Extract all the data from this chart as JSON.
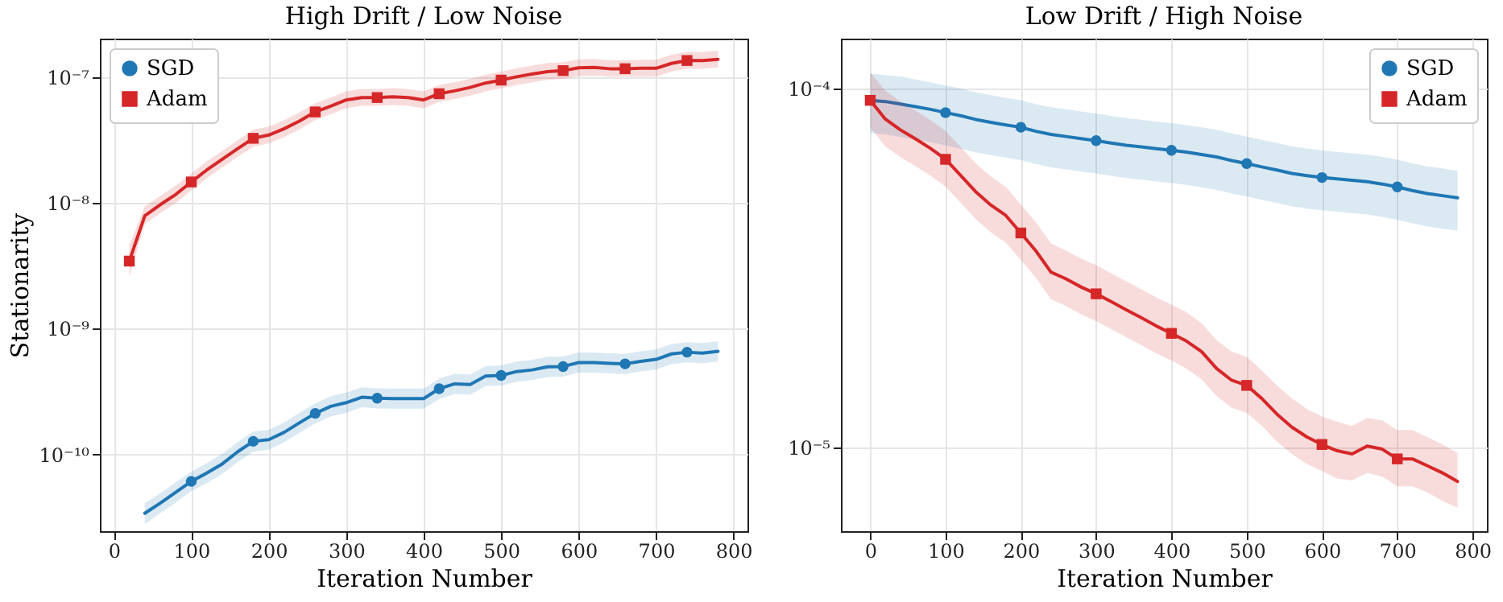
{
  "chart_data": [
    {
      "type": "line",
      "title": "High Drift / Low Noise",
      "xlabel": "Iteration Number",
      "ylabel": "Stationarity",
      "log": "y",
      "grid": true,
      "legend": "top left",
      "x": [
        20,
        40,
        60,
        80,
        100,
        120,
        140,
        160,
        180,
        200,
        220,
        240,
        260,
        280,
        300,
        320,
        340,
        360,
        380,
        400,
        420,
        440,
        460,
        480,
        500,
        520,
        540,
        560,
        580,
        600,
        620,
        640,
        660,
        680,
        700,
        720,
        740,
        760,
        780
      ],
      "xlim": [
        -18,
        818
      ],
      "xticks": [
        0,
        100,
        200,
        300,
        400,
        500,
        600,
        700,
        800
      ],
      "ylim": [
        2.45e-11,
        2.03e-07
      ],
      "yticks": [
        {
          "value": 1e-10,
          "label": "10⁻¹⁰"
        },
        {
          "value": 1e-09,
          "label": "10⁻⁹"
        },
        {
          "value": 1e-08,
          "label": "10⁻⁸"
        },
        {
          "value": 1e-07,
          "label": "10⁻⁷"
        }
      ],
      "series": [
        {
          "name": "SGD",
          "color": "#1f77b4",
          "values": [
            null,
            3.4e-11,
            4.1e-11,
            5e-11,
            6.1e-11,
            7.1e-11,
            8.4e-11,
            1.05e-10,
            1.27e-10,
            1.31e-10,
            1.5e-10,
            1.79e-10,
            2.12e-10,
            2.41e-10,
            2.58e-10,
            2.85e-10,
            2.8e-10,
            2.78e-10,
            2.78e-10,
            2.78e-10,
            3.33e-10,
            3.64e-10,
            3.6e-10,
            4.2e-10,
            4.25e-10,
            4.56e-10,
            4.7e-10,
            4.98e-10,
            5e-10,
            5.38e-10,
            5.38e-10,
            5.3e-10,
            5.25e-10,
            5.5e-10,
            5.7e-10,
            6.3e-10,
            6.5e-10,
            6.4e-10,
            6.6e-10
          ],
          "upper": [
            null,
            4.1e-11,
            4.9e-11,
            6e-11,
            7.3e-11,
            8.5e-11,
            1.01e-10,
            1.26e-10,
            1.52e-10,
            1.57e-10,
            1.8e-10,
            2.15e-10,
            2.54e-10,
            2.89e-10,
            3.1e-10,
            3.42e-10,
            3.36e-10,
            3.34e-10,
            3.34e-10,
            3.34e-10,
            4e-10,
            4.37e-10,
            4.32e-10,
            5.04e-10,
            5.1e-10,
            5.47e-10,
            5.64e-10,
            5.98e-10,
            6e-10,
            6.46e-10,
            6.46e-10,
            6.36e-10,
            6.3e-10,
            6.6e-10,
            6.84e-10,
            7.56e-10,
            7.8e-10,
            7.68e-10,
            7.92e-10
          ],
          "lower": [
            null,
            2.8e-11,
            3.4e-11,
            4.15e-11,
            5.1e-11,
            5.9e-11,
            7e-11,
            8.7e-11,
            1.05e-10,
            1.09e-10,
            1.25e-10,
            1.49e-10,
            1.76e-10,
            2e-10,
            2.14e-10,
            2.37e-10,
            2.32e-10,
            2.31e-10,
            2.31e-10,
            2.31e-10,
            2.76e-10,
            3.02e-10,
            2.99e-10,
            3.49e-10,
            3.53e-10,
            3.78e-10,
            3.9e-10,
            4.13e-10,
            4.15e-10,
            4.47e-10,
            4.47e-10,
            4.4e-10,
            4.36e-10,
            4.57e-10,
            4.73e-10,
            5.23e-10,
            5.4e-10,
            5.31e-10,
            5.48e-10
          ]
        },
        {
          "name": "Adam",
          "color": "#d62728",
          "values": [
            3.45e-09,
            7.9e-09,
            9.7e-09,
            1.17e-08,
            1.47e-08,
            1.83e-08,
            2.23e-08,
            2.71e-08,
            3.27e-08,
            3.47e-08,
            3.9e-08,
            4.5e-08,
            5.3e-08,
            5.9e-08,
            6.6e-08,
            6.9e-08,
            6.9e-08,
            7e-08,
            6.9e-08,
            6.6e-08,
            7.4e-08,
            7.8e-08,
            8.3e-08,
            9e-08,
            9.5e-08,
            1.01e-07,
            1.06e-07,
            1.11e-07,
            1.13e-07,
            1.19e-07,
            1.2e-07,
            1.17e-07,
            1.17e-07,
            1.18e-07,
            1.18e-07,
            1.29e-07,
            1.36e-07,
            1.36e-07,
            1.39e-07
          ],
          "upper": [
            4.6e-09,
            9.4e-09,
            1.14e-08,
            1.37e-08,
            1.72e-08,
            2.14e-08,
            2.6e-08,
            3.17e-08,
            3.83e-08,
            4.06e-08,
            4.56e-08,
            5.27e-08,
            6.2e-08,
            6.9e-08,
            7.72e-08,
            8.07e-08,
            8.07e-08,
            8.19e-08,
            8.07e-08,
            7.72e-08,
            8.66e-08,
            9.13e-08,
            9.71e-08,
            1.05e-07,
            1.11e-07,
            1.18e-07,
            1.24e-07,
            1.3e-07,
            1.32e-07,
            1.39e-07,
            1.4e-07,
            1.37e-07,
            1.37e-07,
            1.38e-07,
            1.38e-07,
            1.51e-07,
            1.59e-07,
            1.59e-07,
            1.63e-07
          ],
          "lower": [
            2.6e-09,
            6.8e-09,
            8.3e-09,
            1e-08,
            1.26e-08,
            1.57e-08,
            1.92e-08,
            2.33e-08,
            2.81e-08,
            2.98e-08,
            3.35e-08,
            3.87e-08,
            4.56e-08,
            5.07e-08,
            5.68e-08,
            5.93e-08,
            5.93e-08,
            6.02e-08,
            5.93e-08,
            5.68e-08,
            6.36e-08,
            6.71e-08,
            7.14e-08,
            7.74e-08,
            8.17e-08,
            8.69e-08,
            9.12e-08,
            9.55e-08,
            9.72e-08,
            1.02e-07,
            1.03e-07,
            1.01e-07,
            1.01e-07,
            1.01e-07,
            1.01e-07,
            1.11e-07,
            1.17e-07,
            1.17e-07,
            1.2e-07
          ]
        },
        {
          "type": "scatter",
          "color": "#1f77b4",
          "marker": "circle",
          "x": [
            100,
            180,
            260,
            340,
            420,
            500,
            580,
            660,
            740
          ],
          "values": [
            6.1e-11,
            1.27e-10,
            2.12e-10,
            2.8e-10,
            3.33e-10,
            4.25e-10,
            5e-10,
            5.25e-10,
            6.5e-10
          ]
        },
        {
          "type": "scatter",
          "color": "#d62728",
          "marker": "square",
          "x": [
            20,
            100,
            180,
            260,
            340,
            420,
            500,
            580,
            660,
            740
          ],
          "values": [
            3.45e-09,
            1.47e-08,
            3.27e-08,
            5.3e-08,
            6.9e-08,
            7.4e-08,
            9.5e-08,
            1.13e-07,
            1.17e-07,
            1.36e-07
          ]
        }
      ]
    },
    {
      "type": "line",
      "title": "Low Drift / High Noise",
      "xlabel": "Iteration Number",
      "log": "y",
      "grid": true,
      "legend": "top right",
      "x": [
        0,
        20,
        40,
        60,
        80,
        100,
        120,
        140,
        160,
        180,
        200,
        220,
        240,
        260,
        280,
        300,
        320,
        340,
        360,
        380,
        400,
        420,
        440,
        460,
        480,
        500,
        520,
        540,
        560,
        580,
        600,
        620,
        640,
        660,
        680,
        700,
        720,
        740,
        760,
        780
      ],
      "xlim": [
        -39,
        819
      ],
      "xticks": [
        0,
        100,
        200,
        300,
        400,
        500,
        600,
        700,
        800
      ],
      "ylim": [
        5.85e-06,
        0.0001377
      ],
      "yticks": [
        {
          "value": 1e-05,
          "label": "10⁻⁵"
        },
        {
          "value": 0.0001,
          "label": "10⁻⁴"
        }
      ],
      "series": [
        {
          "name": "SGD",
          "color": "#1f77b4",
          "values": [
            9.27e-05,
            9.2e-05,
            9.05e-05,
            8.9e-05,
            8.75e-05,
            8.57e-05,
            8.4e-05,
            8.2e-05,
            8.05e-05,
            7.92e-05,
            7.8e-05,
            7.6e-05,
            7.45e-05,
            7.35e-05,
            7.25e-05,
            7.16e-05,
            7.05e-05,
            6.95e-05,
            6.88e-05,
            6.8e-05,
            6.73e-05,
            6.65e-05,
            6.55e-05,
            6.45e-05,
            6.3e-05,
            6.18e-05,
            6.05e-05,
            5.93e-05,
            5.8e-05,
            5.72e-05,
            5.65e-05,
            5.6e-05,
            5.55e-05,
            5.5e-05,
            5.42e-05,
            5.32e-05,
            5.2e-05,
            5.1e-05,
            5.03e-05,
            4.96e-05
          ],
          "upper": [
            0.00011,
            0.000109,
            0.000108,
            0.000106,
            0.000104,
            0.000102,
            0.0001,
            9.76e-05,
            9.58e-05,
            9.42e-05,
            9.28e-05,
            9.04e-05,
            8.87e-05,
            8.75e-05,
            8.63e-05,
            8.52e-05,
            8.39e-05,
            8.27e-05,
            8.19e-05,
            8.09e-05,
            8.01e-05,
            7.91e-05,
            7.79e-05,
            7.68e-05,
            7.5e-05,
            7.35e-05,
            7.2e-05,
            7.06e-05,
            6.9e-05,
            6.81e-05,
            6.72e-05,
            6.66e-05,
            6.6e-05,
            6.55e-05,
            6.45e-05,
            6.33e-05,
            6.19e-05,
            6.07e-05,
            5.99e-05,
            5.9e-05
          ],
          "lower": [
            7.51e-05,
            7.45e-05,
            7.33e-05,
            7.21e-05,
            7.09e-05,
            6.94e-05,
            6.8e-05,
            6.64e-05,
            6.52e-05,
            6.42e-05,
            6.32e-05,
            6.16e-05,
            6.03e-05,
            5.95e-05,
            5.87e-05,
            5.8e-05,
            5.71e-05,
            5.63e-05,
            5.57e-05,
            5.51e-05,
            5.45e-05,
            5.39e-05,
            5.31e-05,
            5.22e-05,
            5.1e-05,
            5.01e-05,
            4.9e-05,
            4.8e-05,
            4.7e-05,
            4.63e-05,
            4.58e-05,
            4.54e-05,
            4.5e-05,
            4.46e-05,
            4.39e-05,
            4.31e-05,
            4.21e-05,
            4.13e-05,
            4.07e-05,
            4.02e-05
          ]
        },
        {
          "name": "Adam",
          "color": "#d62728",
          "values": [
            9.27e-05,
            8.22e-05,
            7.67e-05,
            7.24e-05,
            6.81e-05,
            6.35e-05,
            5.73e-05,
            5.16e-05,
            4.74e-05,
            4.43e-05,
            3.96e-05,
            3.53e-05,
            3.08e-05,
            2.95e-05,
            2.8e-05,
            2.68e-05,
            2.55e-05,
            2.42e-05,
            2.3e-05,
            2.18e-05,
            2.08e-05,
            1.98e-05,
            1.85e-05,
            1.66e-05,
            1.54e-05,
            1.49e-05,
            1.37e-05,
            1.24e-05,
            1.14e-05,
            1.07e-05,
            1.02e-05,
            9.8e-06,
            9.6e-06,
            1.01e-05,
            9.9e-06,
            9.3e-06,
            9.3e-06,
            8.9e-06,
            8.5e-06,
            8.05e-06
          ],
          "upper": [
            0.000111,
            9.86e-05,
            9.2e-05,
            8.69e-05,
            8.17e-05,
            7.62e-05,
            6.88e-05,
            6.19e-05,
            5.69e-05,
            5.32e-05,
            4.75e-05,
            4.24e-05,
            3.7e-05,
            3.54e-05,
            3.36e-05,
            3.22e-05,
            3.06e-05,
            2.9e-05,
            2.76e-05,
            2.62e-05,
            2.5e-05,
            2.38e-05,
            2.22e-05,
            1.99e-05,
            1.85e-05,
            1.79e-05,
            1.64e-05,
            1.49e-05,
            1.37e-05,
            1.28e-05,
            1.22e-05,
            1.18e-05,
            1.15e-05,
            1.21e-05,
            1.19e-05,
            1.12e-05,
            1.12e-05,
            1.07e-05,
            1.02e-05,
            9.66e-06
          ],
          "lower": [
            7.79e-05,
            6.9e-05,
            6.44e-05,
            6.08e-05,
            5.72e-05,
            5.33e-05,
            4.81e-05,
            4.33e-05,
            3.98e-05,
            3.72e-05,
            3.33e-05,
            2.97e-05,
            2.59e-05,
            2.48e-05,
            2.35e-05,
            2.25e-05,
            2.14e-05,
            2.03e-05,
            1.93e-05,
            1.83e-05,
            1.75e-05,
            1.66e-05,
            1.55e-05,
            1.39e-05,
            1.29e-05,
            1.25e-05,
            1.15e-05,
            1.04e-05,
            9.6e-06,
            9e-06,
            8.6e-06,
            8.2e-06,
            8.1e-06,
            8.5e-06,
            8.3e-06,
            7.8e-06,
            7.8e-06,
            7.5e-06,
            7.1e-06,
            6.8e-06
          ]
        },
        {
          "type": "scatter",
          "color": "#1f77b4",
          "marker": "circle",
          "x": [
            100,
            200,
            300,
            400,
            500,
            600,
            700
          ],
          "values": [
            8.57e-05,
            7.8e-05,
            7.16e-05,
            6.73e-05,
            6.18e-05,
            5.65e-05,
            5.32e-05
          ]
        },
        {
          "type": "scatter",
          "color": "#d62728",
          "marker": "square",
          "x": [
            0,
            100,
            200,
            300,
            400,
            500,
            600,
            700
          ],
          "values": [
            9.27e-05,
            6.35e-05,
            3.96e-05,
            2.68e-05,
            2.08e-05,
            1.49e-05,
            1.02e-05,
            9.3e-06
          ]
        }
      ]
    }
  ]
}
